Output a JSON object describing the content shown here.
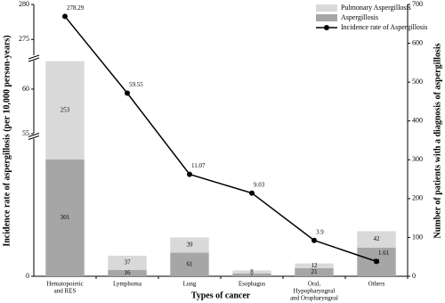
{
  "chart_data": {
    "type": "bar-line",
    "categories": [
      [
        "Hematopoietic",
        "and RES"
      ],
      [
        "Lymphoma"
      ],
      [
        "Lung"
      ],
      [
        "Esophagus"
      ],
      [
        "Oral,",
        "Hypopharyngeal",
        "and Oropharyngeal"
      ],
      [
        "Others"
      ]
    ],
    "x_label": "Types of cancer",
    "y_label": "Incidence rate of aspergillosis (per 10,000 person-years)",
    "y2_label": "Number of patients with a diagnosis of aspergillosis",
    "ylim": [
      0,
      280
    ],
    "ybreaks": [
      [
        15,
        55
      ],
      [
        63,
        273
      ]
    ],
    "yticks": [
      0,
      55,
      60,
      275,
      280
    ],
    "y2lim": [
      0,
      700
    ],
    "y2ticks": [
      0,
      100,
      200,
      300,
      400,
      500,
      600,
      700
    ],
    "legend": "top-right",
    "series": [
      {
        "name": "Aspergillosis",
        "type": "bar",
        "axis": "y2",
        "color": "#a6a6a6",
        "values": [
          301,
          16,
          61,
          7,
          21,
          74
        ]
      },
      {
        "name": "Pulmonary Aspergillosis",
        "type": "bar",
        "axis": "y2",
        "color": "#d9d9d9",
        "values": [
          253,
          37,
          39,
          8,
          12,
          42
        ]
      },
      {
        "name": "Incidence rate of Aspergillosis",
        "type": "line",
        "axis": "y",
        "color": "#000000",
        "values": [
          278.29,
          59.55,
          11.07,
          9.03,
          3.9,
          1.61
        ]
      }
    ]
  }
}
